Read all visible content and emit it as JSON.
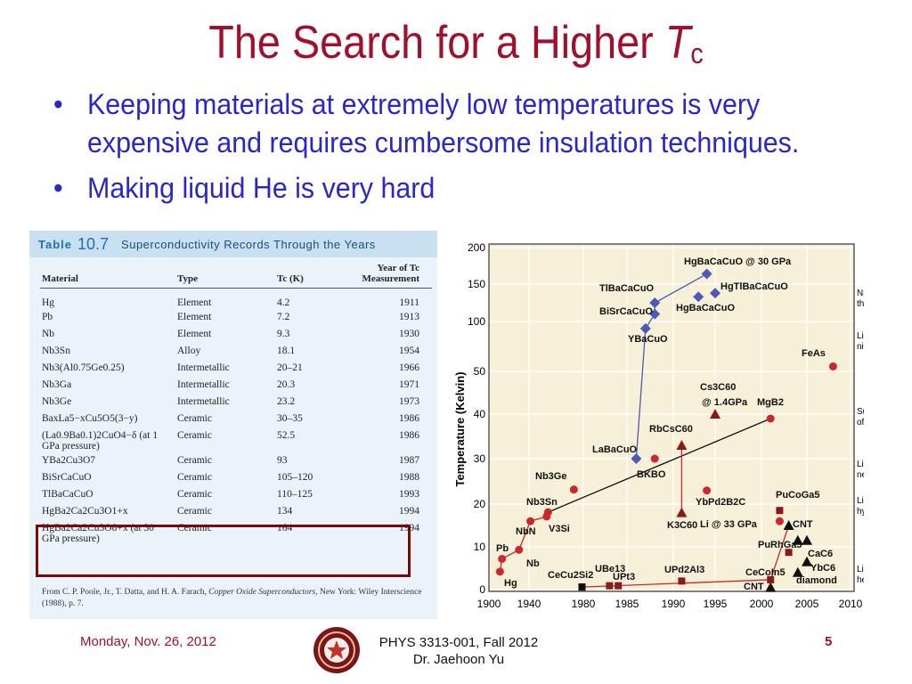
{
  "slide": {
    "title": "The Search for a Higher ",
    "title_italic": "T",
    "title_sub": "c",
    "bullets": [
      "Keeping materials at extremely low temperatures is very expensive and requires cumbersome insulation techniques.",
      "Making liquid He is very hard"
    ]
  },
  "table": {
    "label": "Table",
    "number": "10.7",
    "name": "Superconductivity Records Through the Years",
    "headers": [
      "Material",
      "Type",
      "Tc (K)",
      "Year of Tc Measurement"
    ],
    "rows": [
      [
        "Hg",
        "Element",
        "4.2",
        "1911"
      ],
      [
        "Pb",
        "Element",
        "7.2",
        "1913"
      ],
      [
        "Nb",
        "Element",
        "9.3",
        "1930"
      ],
      [
        "Nb3Sn",
        "Alloy",
        "18.1",
        "1954"
      ],
      [
        "Nb3(Al0.75Ge0.25)",
        "Intermetallic",
        "20–21",
        "1966"
      ],
      [
        "Nb3Ga",
        "Intermetallic",
        "20.3",
        "1971"
      ],
      [
        "Nb3Ge",
        "Intermetallic",
        "23.2",
        "1973"
      ],
      [
        "BaxLa5−xCu5O5(3−y)",
        "Ceramic",
        "30–35",
        "1986"
      ],
      [
        "(La0.9Ba0.1)2CuO4−δ (at 1 GPa pressure)",
        "Ceramic",
        "52.5",
        "1986"
      ],
      [
        "YBa2Cu3O7",
        "Ceramic",
        "93",
        "1987"
      ],
      [
        "BiSrCaCuO",
        "Ceramic",
        "105–120",
        "1988"
      ],
      [
        "TlBaCaCuO",
        "Ceramic",
        "110–125",
        "1993"
      ],
      [
        "HgBa2Ca2Cu3O1+x",
        "Ceramic",
        "134",
        "1994"
      ],
      [
        "HgBa2Ca2Cu3O8+x (at 30 GPa pressure)",
        "Ceramic",
        "164",
        "1994"
      ]
    ],
    "source_prefix": "From C. P. Poole, Jr., T. Datta, and H. A. Farach, ",
    "source_book": "Copper Oxide Superconductors",
    "source_suffix": ", New York: Wiley Interscience (1988), p. 7."
  },
  "chart_data": {
    "type": "scatter",
    "ylabel": "Temperature (Kelvin)",
    "x_ticks": [
      "1900",
      "1940",
      "1980",
      "1985",
      "1990",
      "1995",
      "2000",
      "2005",
      "2010"
    ],
    "y_ticks": [
      "0",
      "10",
      "20",
      "30",
      "40",
      "50",
      "100",
      "150",
      "200"
    ],
    "reference_lines": [
      {
        "label": "Night on the Moon",
        "y": 100
      },
      {
        "label": "Liquid nitrogen",
        "y": 77
      },
      {
        "label": "Surface of Pluto",
        "y": 40
      },
      {
        "label": "Liquid neon",
        "y": 27
      },
      {
        "label": "Liquid hydrogen",
        "y": 20
      },
      {
        "label": "Liquid helium",
        "y": 4.2
      }
    ],
    "points": [
      {
        "label": "Hg",
        "year": 1911,
        "tc": 4.2
      },
      {
        "label": "Pb",
        "year": 1913,
        "tc": 7.2
      },
      {
        "label": "Nb",
        "year": 1930,
        "tc": 9.3
      },
      {
        "label": "NbN",
        "year": 1941,
        "tc": 16
      },
      {
        "label": "V3Si",
        "year": 1953,
        "tc": 17.1
      },
      {
        "label": "Nb3Sn",
        "year": 1954,
        "tc": 18.1
      },
      {
        "label": "Nb3Ge",
        "year": 1973,
        "tc": 23.2
      },
      {
        "label": "CeCu2Si2",
        "year": 1979,
        "tc": 0.6
      },
      {
        "label": "UBe13",
        "year": 1983,
        "tc": 0.9
      },
      {
        "label": "UPt3",
        "year": 1984,
        "tc": 0.5
      },
      {
        "label": "LaBaCuO",
        "year": 1986,
        "tc": 30
      },
      {
        "label": "YBaCuO",
        "year": 1987,
        "tc": 93
      },
      {
        "label": "BiSrCaCuO",
        "year": 1988,
        "tc": 110
      },
      {
        "label": "TlBaCaCuO",
        "year": 1988,
        "tc": 125
      },
      {
        "label": "BKBO",
        "year": 1988,
        "tc": 30
      },
      {
        "label": "K3C60",
        "year": 1991,
        "tc": 18
      },
      {
        "label": "RbCsC60",
        "year": 1991,
        "tc": 33
      },
      {
        "label": "Cs3C60 @ 1.4GPa",
        "year": 1995,
        "tc": 40
      },
      {
        "label": "UPd2Al3",
        "year": 1991,
        "tc": 2
      },
      {
        "label": "HgBaCaCuO",
        "year": 1993,
        "tc": 133
      },
      {
        "label": "HgTlBaCaCuO",
        "year": 1995,
        "tc": 138
      },
      {
        "label": "HgBaCaCuO @ 30 GPa",
        "year": 1994,
        "tc": 164
      },
      {
        "label": "YbPd2B2C",
        "year": 1994,
        "tc": 23
      },
      {
        "label": "MgB2",
        "year": 2001,
        "tc": 39
      },
      {
        "label": "CeCoIn5",
        "year": 2001,
        "tc": 2.3
      },
      {
        "label": "PuCoGa5",
        "year": 2002,
        "tc": 18.5
      },
      {
        "label": "Li @ 33 GPa",
        "year": 2002,
        "tc": 16
      },
      {
        "label": "CNT",
        "year": 2001,
        "tc": 0.5
      },
      {
        "label": "CNT",
        "year": 2003,
        "tc": 15
      },
      {
        "label": "PuRhGa5",
        "year": 2003,
        "tc": 8.7
      },
      {
        "label": "CaC6",
        "year": 2005,
        "tc": 11.5
      },
      {
        "label": "YbC6",
        "year": 2005,
        "tc": 6.5
      },
      {
        "label": "diamond",
        "year": 2004,
        "tc": 4
      },
      {
        "label": "FeAs",
        "year": 2008,
        "tc": 55
      }
    ]
  },
  "chart_labels": {
    "hgbacacuo30": "HgBaCaCuO @ 30 GPa",
    "tlbacacuo": "TlBaCaCuO",
    "hgtlbacacuo": "HgTlBaCaCuO",
    "bisrcacuo": "BiSrCaCuO",
    "hgbacacuo": "HgBaCaCuO",
    "ybacuo": "YBaCuO",
    "feas": "FeAs",
    "cs3c60": "Cs3C60",
    "cs3c60_p": "@ 1.4GPa",
    "mgb2": "MgB2",
    "rbcsc60": "RbCsC60",
    "labacuo": "LaBaCuO",
    "bkbo": "BKBO",
    "nb3ge": "Nb3Ge",
    "ybpd2b2c": "YbPd2B2C",
    "pucoga5": "PuCoGa5",
    "nb3sn": "Nb3Sn",
    "li33": "Li @ 33 GPa",
    "cnt": "CNT",
    "k3c60": "K3C60",
    "nbn": "NbN",
    "v3si": "V3Si",
    "purhga5": "PuRhGa5",
    "cac6": "CaC6",
    "pb": "Pb",
    "nb": "Nb",
    "ybc6": "YbC6",
    "diamond": "diamond",
    "upd2al3": "UPd2Al3",
    "ube13": "UBe13",
    "upt3": "UPt3",
    "cecu2si2": "CeCu2Si2",
    "cecoin5": "CeCoIn5",
    "cnt2": "CNT",
    "hg": "Hg",
    "moon1": "Night on",
    "moon2": "the Moon",
    "ln1": "Liquid",
    "ln2": "nitrogen",
    "pluto1": "Surface",
    "pluto2": "of Pluto",
    "lne1": "Liquid",
    "lne2": "neon",
    "lh1": "Liquid",
    "lh2": "hydrogen",
    "lhe1": "Liquid",
    "lhe2": "helium"
  },
  "footer": {
    "date": "Monday, Nov. 26, 2012",
    "course": "PHYS 3313-001, Fall 2012",
    "instructor": "Dr. Jaehoon Yu",
    "page": "5"
  },
  "colors": {
    "title": "#a0102a",
    "bullet_text": "#2a26c9",
    "table_bg": "#eaf3fa",
    "table_header_bg": "#c9e0f1",
    "chart_bg": "#f6f0d8",
    "marker_blue": "#4a5ab5",
    "marker_red": "#c8282e",
    "marker_dark_red": "#8a1a1a"
  }
}
